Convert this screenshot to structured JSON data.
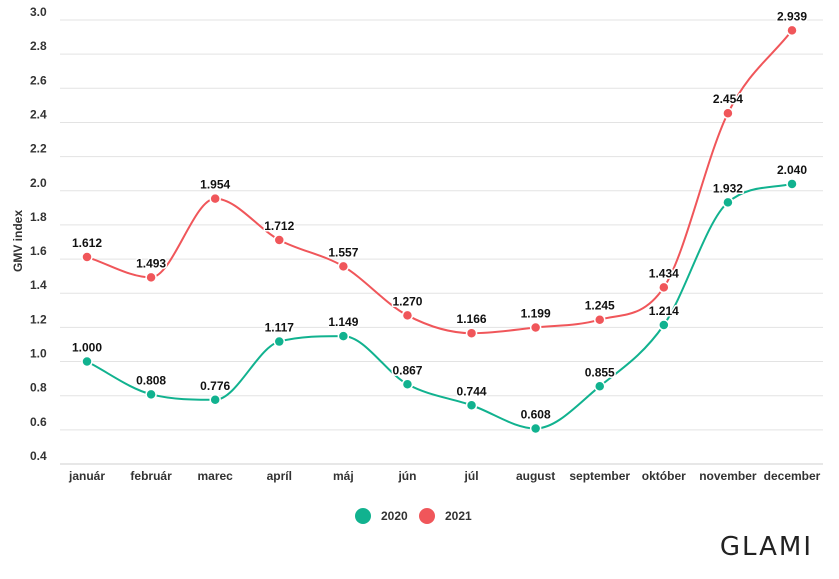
{
  "brand": {
    "logo_text": "GLAMI"
  },
  "chart_data": {
    "type": "line",
    "ylabel": "GMV index",
    "xlabel": "",
    "ylim": [
      0.4,
      3.0
    ],
    "yticks": [
      "3.0",
      "2.8",
      "2.6",
      "2.4",
      "2.2",
      "2.0",
      "1.8",
      "1.6",
      "1.4",
      "1.2",
      "1.0",
      "0.8",
      "0.6",
      "0.4"
    ],
    "categories": [
      "január",
      "február",
      "marec",
      "apríl",
      "máj",
      "jún",
      "júl",
      "august",
      "september",
      "október",
      "november",
      "december"
    ],
    "grid": true,
    "legend_position": "bottom",
    "series": [
      {
        "name": "2020",
        "color": "#11b28f",
        "values": [
          1.0,
          0.808,
          0.776,
          1.117,
          1.149,
          0.867,
          0.744,
          0.608,
          0.855,
          1.214,
          1.932,
          2.04
        ],
        "labels": [
          "1.000",
          "0.808",
          "0.776",
          "1.117",
          "1.149",
          "0.867",
          "0.744",
          "0.608",
          "0.855",
          "1.214",
          "1.932",
          "2.040"
        ]
      },
      {
        "name": "2021",
        "color": "#f0565a",
        "values": [
          1.612,
          1.493,
          1.954,
          1.712,
          1.557,
          1.27,
          1.166,
          1.199,
          1.245,
          1.434,
          2.454,
          2.939
        ],
        "labels": [
          "1.612",
          "1.493",
          "1.954",
          "1.712",
          "1.557",
          "1.270",
          "1.166",
          "1.199",
          "1.245",
          "1.434",
          "2.454",
          "2.939"
        ]
      }
    ]
  }
}
